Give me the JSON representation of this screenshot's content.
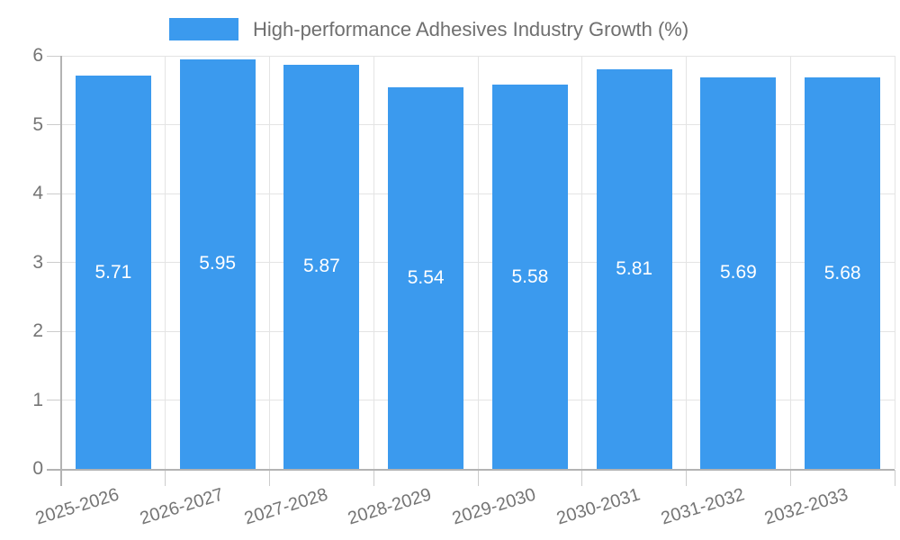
{
  "chart_data": {
    "type": "bar",
    "title": "High-performance Adhesives Industry Growth (%)",
    "legend_position": "top",
    "categories": [
      "2025-2026",
      "2026-2027",
      "2027-2028",
      "2028-2029",
      "2029-2030",
      "2030-2031",
      "2031-2032",
      "2032-2033"
    ],
    "values": [
      5.71,
      5.95,
      5.87,
      5.54,
      5.58,
      5.81,
      5.69,
      5.68
    ],
    "value_labels": [
      "5.71",
      "5.95",
      "5.87",
      "5.54",
      "5.58",
      "5.81",
      "5.69",
      "5.68"
    ],
    "xlabel": "",
    "ylabel": "",
    "ylim": [
      0,
      6
    ],
    "yticks": [
      0,
      1,
      2,
      3,
      4,
      5,
      6
    ],
    "ytick_labels": [
      "0",
      "1",
      "2",
      "3",
      "4",
      "5",
      "6"
    ],
    "grid": "horizontal and vertical",
    "colors": {
      "bar": "#3B9AEE",
      "value_label_text": "#ffffff",
      "axis_text": "#757575",
      "legend_text": "#6f6f6f",
      "grid_line": "#e4e4e4",
      "axis_line": "#b3b3b3",
      "tick_mark": "#cccccc",
      "background": "#ffffff"
    }
  }
}
